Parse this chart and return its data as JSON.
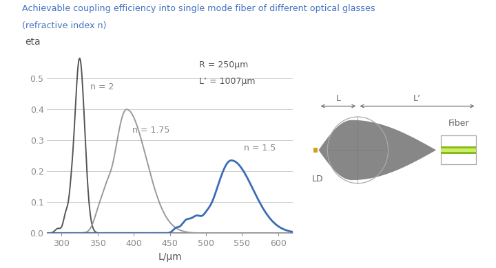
{
  "title_line1": "Achievable coupling efficiency into single mode fiber of different optical glasses",
  "title_line2": "(refractive index n)",
  "title_color": "#4472C4",
  "ylabel": "eta",
  "xlabel": "L/μm",
  "annotation_R": "R = 250µm",
  "annotation_Lprime": "L’ = 1007µm",
  "ylim": [
    0,
    0.58
  ],
  "xlim": [
    280,
    620
  ],
  "xticks": [
    300,
    350,
    400,
    450,
    500,
    550,
    600
  ],
  "yticks": [
    0,
    0.1,
    0.2,
    0.3,
    0.4,
    0.5
  ],
  "curve_n2_color": "#555555",
  "curve_n175_color": "#999999",
  "curve_n15_color": "#3B6CB5",
  "label_n2": "n = 2",
  "label_n175": "n = 1.75",
  "label_n15": "n = 1.5",
  "bg_color": "#ffffff",
  "grid_color": "#cccccc",
  "tick_color": "#888888",
  "axis_color": "#aaaaaa",
  "diagram_lens_color": "#777777",
  "diagram_circle_color": "#aaaaaa",
  "diagram_arrow_color": "#777777",
  "diagram_ld_color": "#D4A017",
  "diagram_fiber_rect_color": "#dddddd",
  "diagram_fiber_line_color": "#99cc00"
}
